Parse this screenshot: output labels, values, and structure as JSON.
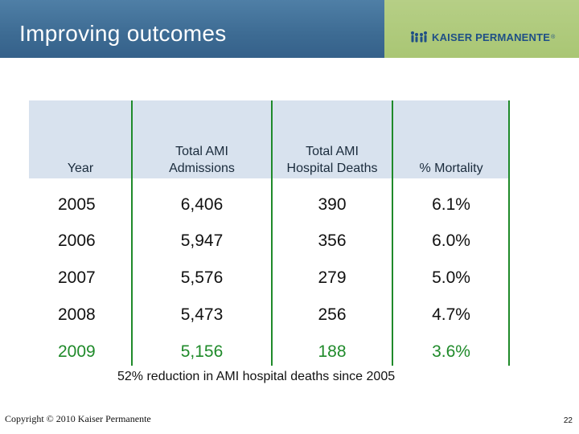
{
  "header": {
    "title": "Improving outcomes",
    "logo": {
      "text": "KAISER PERMANENTE",
      "registered": "®",
      "icon": "kp-people-logo-icon"
    }
  },
  "table": {
    "columns": [
      "Year",
      "Total AMI Admissions",
      "Total AMI Hospital Deaths",
      "% Mortality"
    ],
    "column_lines": [
      [
        "Total AMI",
        "Admissions"
      ],
      [
        "Total AMI",
        "Hospital Deaths"
      ]
    ],
    "rows": [
      {
        "year": "2005",
        "admissions": "6,406",
        "deaths": "390",
        "mortality": "6.1%"
      },
      {
        "year": "2006",
        "admissions": "5,947",
        "deaths": "356",
        "mortality": "6.0%"
      },
      {
        "year": "2007",
        "admissions": "5,576",
        "deaths": "279",
        "mortality": "5.0%"
      },
      {
        "year": "2008",
        "admissions": "5,473",
        "deaths": "256",
        "mortality": "4.7%"
      },
      {
        "year": "2009",
        "admissions": "5,156",
        "deaths": "188",
        "mortality": "3.6%"
      }
    ]
  },
  "note": "52% reduction in AMI  hospital deaths since 2005",
  "footer": {
    "copyright": "Copyright © 2010 Kaiser Permanente",
    "page_number": "22"
  },
  "colors": {
    "header_blue": "#3d6b93",
    "header_green": "#a9c674",
    "logo_blue": "#1f4f86",
    "highlight_green": "#1f8a2a",
    "table_header_bg": "#d8e2ee"
  }
}
